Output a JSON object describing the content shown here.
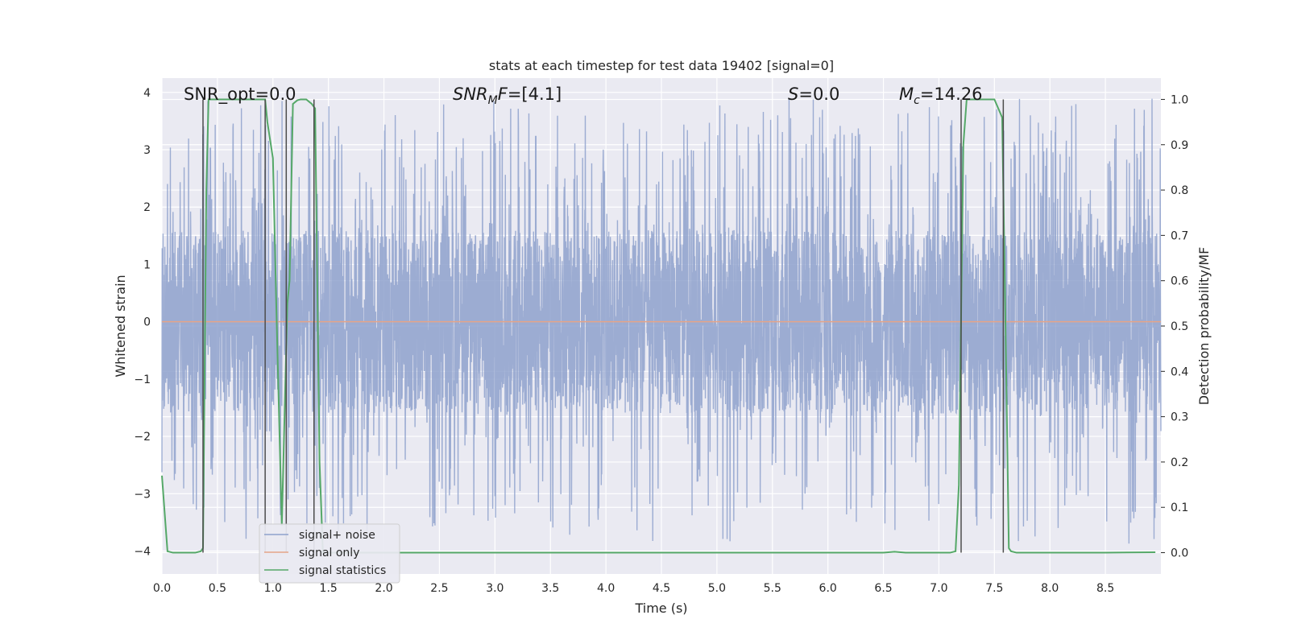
{
  "chart_data": {
    "type": "line",
    "title": "stats at each timestep for test data 19402 [signal=0]",
    "xlabel": "Time (s)",
    "ylabel_left": "Whitened strain",
    "ylabel_right": "Detection probability/MF",
    "xlim": [
      0.0,
      9.0
    ],
    "ylim_left": [
      -4.4,
      4.25
    ],
    "ylim_right": [
      -0.047,
      1.047
    ],
    "x_ticks": [
      "0.0",
      "0.5",
      "1.0",
      "1.5",
      "2.0",
      "2.5",
      "3.0",
      "3.5",
      "4.0",
      "4.5",
      "5.0",
      "5.5",
      "6.0",
      "6.5",
      "7.0",
      "7.5",
      "8.0",
      "8.5"
    ],
    "y_ticks_left": [
      "4",
      "3",
      "2",
      "1",
      "0",
      "−1",
      "−2",
      "−3",
      "−4"
    ],
    "y_ticks_right": [
      "1.0",
      "0.9",
      "0.8",
      "0.7",
      "0.6",
      "0.5",
      "0.4",
      "0.3",
      "0.2",
      "0.1",
      "0.0"
    ],
    "grid": true,
    "legend_position": "lower-left",
    "annotations": [
      {
        "text": "SNR_opt=0.0",
        "x": 0.2
      },
      {
        "text": "SNRMF=[4.1]",
        "x": 2.6
      },
      {
        "text": "S=0.0",
        "x": 5.6
      },
      {
        "text": "Mc=14.26",
        "x": 6.6
      }
    ],
    "series": [
      {
        "name": "signal+ noise",
        "color": "#8ea1cc",
        "sample_rate_hz": 500,
        "envelope_abs": 1.6,
        "spike_max": 3.9,
        "spike_min": -4.0
      },
      {
        "name": "signal only",
        "color": "#e5a488",
        "x": [
          0.0,
          9.0
        ],
        "y": [
          0.0,
          0.0
        ]
      },
      {
        "name": "signal statistics",
        "color": "#55a868",
        "x": [
          0.0,
          0.05,
          0.1,
          0.15,
          0.2,
          0.3,
          0.35,
          0.37,
          0.4,
          0.42,
          0.45,
          0.5,
          0.6,
          0.7,
          0.8,
          0.9,
          0.93,
          0.95,
          1.0,
          1.03,
          1.08,
          1.13,
          1.15,
          1.18,
          1.22,
          1.25,
          1.3,
          1.35,
          1.38,
          1.42,
          1.45,
          1.5,
          2.0,
          3.0,
          4.0,
          5.0,
          6.0,
          6.5,
          6.6,
          6.7,
          7.0,
          7.1,
          7.15,
          7.18,
          7.22,
          7.25,
          7.3,
          7.4,
          7.5,
          7.57,
          7.6,
          7.63,
          7.65,
          7.7,
          8.0,
          8.5,
          8.95
        ],
        "y": [
          0.17,
          0.003,
          0.0,
          0.0,
          0.0,
          0.0,
          0.003,
          0.01,
          0.8,
          1.0,
          1.0,
          1.0,
          1.0,
          1.0,
          1.0,
          1.0,
          1.0,
          0.95,
          0.87,
          0.55,
          0.06,
          0.55,
          0.6,
          0.99,
          0.998,
          1.0,
          1.0,
          0.99,
          0.98,
          0.2,
          0.0,
          0.0,
          0.0,
          0.0,
          0.0,
          0.0,
          0.0,
          0.0,
          0.002,
          0.0,
          0.0,
          0.0,
          0.003,
          0.15,
          0.9,
          1.0,
          1.0,
          1.0,
          1.0,
          0.96,
          0.5,
          0.01,
          0.003,
          0.0,
          0.0,
          0.0,
          0.001
        ]
      }
    ],
    "vertical_markers_x": [
      0.37,
      0.93,
      1.12,
      1.37,
      7.2,
      7.58
    ],
    "colors": {
      "plot_background": "#eaeaf2",
      "grid": "#ffffff",
      "marker_line": "#4c4c4c"
    }
  }
}
